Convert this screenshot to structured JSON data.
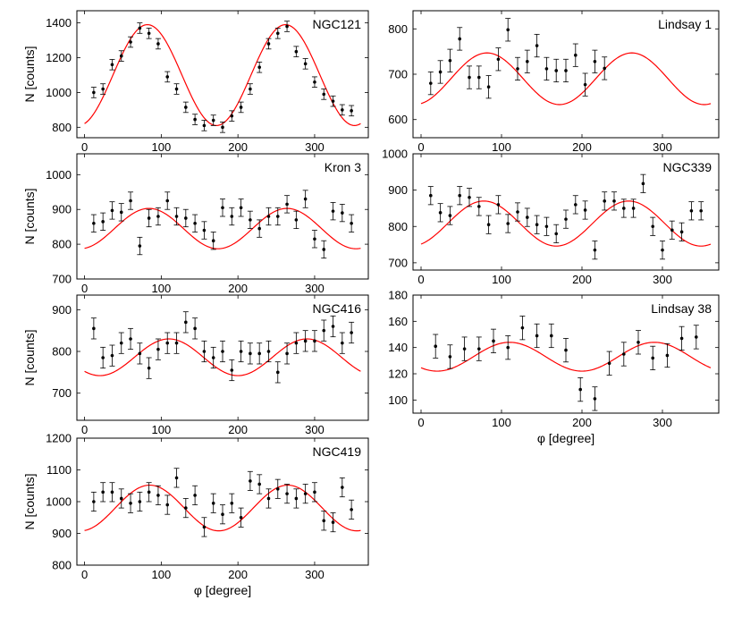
{
  "figure": {
    "xlabel": "φ [degree]",
    "ylabel": "N [counts]"
  },
  "chart_data": [
    {
      "type": "scatter",
      "title": "NGC121",
      "xlabel": "",
      "ylabel": "N [counts]",
      "xlim": [
        -10,
        370
      ],
      "ylim": [
        740,
        1470
      ],
      "xticks": [
        "0",
        "100",
        "200",
        "300"
      ],
      "xtick_values": [
        0,
        100,
        200,
        300
      ],
      "yticks": [
        "800",
        "1000",
        "1200",
        "1400"
      ],
      "ytick_values": [
        800,
        1000,
        1200,
        1400
      ],
      "fit": {
        "mean": 1100,
        "amplitude": 290,
        "period_deg": 180,
        "peak_deg": 82,
        "color": "#ff0000"
      },
      "points": [
        {
          "x": 12,
          "y": 1000,
          "e": 30
        },
        {
          "x": 24,
          "y": 1020,
          "e": 30
        },
        {
          "x": 36,
          "y": 1160,
          "e": 30
        },
        {
          "x": 48,
          "y": 1210,
          "e": 30
        },
        {
          "x": 60,
          "y": 1290,
          "e": 30
        },
        {
          "x": 72,
          "y": 1370,
          "e": 30
        },
        {
          "x": 84,
          "y": 1340,
          "e": 30
        },
        {
          "x": 96,
          "y": 1280,
          "e": 30
        },
        {
          "x": 108,
          "y": 1090,
          "e": 30
        },
        {
          "x": 120,
          "y": 1020,
          "e": 30
        },
        {
          "x": 132,
          "y": 915,
          "e": 30
        },
        {
          "x": 144,
          "y": 845,
          "e": 30
        },
        {
          "x": 156,
          "y": 810,
          "e": 30
        },
        {
          "x": 168,
          "y": 840,
          "e": 30
        },
        {
          "x": 180,
          "y": 800,
          "e": 30
        },
        {
          "x": 192,
          "y": 865,
          "e": 30
        },
        {
          "x": 204,
          "y": 915,
          "e": 30
        },
        {
          "x": 216,
          "y": 1020,
          "e": 30
        },
        {
          "x": 228,
          "y": 1145,
          "e": 30
        },
        {
          "x": 240,
          "y": 1280,
          "e": 30
        },
        {
          "x": 252,
          "y": 1340,
          "e": 30
        },
        {
          "x": 264,
          "y": 1380,
          "e": 30
        },
        {
          "x": 276,
          "y": 1235,
          "e": 30
        },
        {
          "x": 288,
          "y": 1165,
          "e": 30
        },
        {
          "x": 300,
          "y": 1060,
          "e": 30
        },
        {
          "x": 312,
          "y": 990,
          "e": 30
        },
        {
          "x": 324,
          "y": 950,
          "e": 30
        },
        {
          "x": 336,
          "y": 900,
          "e": 30
        },
        {
          "x": 348,
          "y": 895,
          "e": 30
        }
      ]
    },
    {
      "type": "scatter",
      "title": "Lindsay 1",
      "xlabel": "",
      "ylabel": "",
      "xlim": [
        -10,
        370
      ],
      "ylim": [
        560,
        840
      ],
      "xticks": [
        "0",
        "100",
        "200",
        "300"
      ],
      "xtick_values": [
        0,
        100,
        200,
        300
      ],
      "yticks": [
        "600",
        "700",
        "800"
      ],
      "ytick_values": [
        600,
        700,
        800
      ],
      "fit": {
        "mean": 690,
        "amplitude": 57,
        "period_deg": 180,
        "peak_deg": 82,
        "color": "#ff0000"
      },
      "points": [
        {
          "x": 12,
          "y": 680,
          "e": 25
        },
        {
          "x": 24,
          "y": 705,
          "e": 25
        },
        {
          "x": 36,
          "y": 730,
          "e": 25
        },
        {
          "x": 48,
          "y": 778,
          "e": 25
        },
        {
          "x": 60,
          "y": 693,
          "e": 25
        },
        {
          "x": 72,
          "y": 693,
          "e": 25
        },
        {
          "x": 84,
          "y": 672,
          "e": 25
        },
        {
          "x": 96,
          "y": 733,
          "e": 25
        },
        {
          "x": 108,
          "y": 798,
          "e": 25
        },
        {
          "x": 120,
          "y": 712,
          "e": 25
        },
        {
          "x": 132,
          "y": 728,
          "e": 25
        },
        {
          "x": 144,
          "y": 763,
          "e": 25
        },
        {
          "x": 156,
          "y": 712,
          "e": 25
        },
        {
          "x": 168,
          "y": 708,
          "e": 25
        },
        {
          "x": 180,
          "y": 708,
          "e": 25
        },
        {
          "x": 192,
          "y": 742,
          "e": 25
        },
        {
          "x": 204,
          "y": 677,
          "e": 25
        },
        {
          "x": 216,
          "y": 728,
          "e": 25
        },
        {
          "x": 228,
          "y": 713,
          "e": 25
        }
      ]
    },
    {
      "type": "scatter",
      "title": "Kron 3",
      "xlabel": "",
      "ylabel": "N [counts]",
      "xlim": [
        -10,
        370
      ],
      "ylim": [
        700,
        1060
      ],
      "xticks": [
        "0",
        "100",
        "200",
        "300"
      ],
      "xtick_values": [
        0,
        100,
        200,
        300
      ],
      "yticks": [
        "700",
        "800",
        "900",
        "1000"
      ],
      "ytick_values": [
        700,
        800,
        900,
        1000
      ],
      "fit": {
        "mean": 845,
        "amplitude": 58,
        "period_deg": 180,
        "peak_deg": 84,
        "color": "#ff0000"
      },
      "points": [
        {
          "x": 12,
          "y": 860,
          "e": 25
        },
        {
          "x": 24,
          "y": 865,
          "e": 25
        },
        {
          "x": 36,
          "y": 897,
          "e": 25
        },
        {
          "x": 48,
          "y": 892,
          "e": 25
        },
        {
          "x": 60,
          "y": 925,
          "e": 25
        },
        {
          "x": 72,
          "y": 795,
          "e": 25
        },
        {
          "x": 84,
          "y": 875,
          "e": 25
        },
        {
          "x": 96,
          "y": 880,
          "e": 25
        },
        {
          "x": 108,
          "y": 925,
          "e": 25
        },
        {
          "x": 120,
          "y": 880,
          "e": 25
        },
        {
          "x": 132,
          "y": 875,
          "e": 25
        },
        {
          "x": 144,
          "y": 860,
          "e": 25
        },
        {
          "x": 156,
          "y": 840,
          "e": 25
        },
        {
          "x": 168,
          "y": 810,
          "e": 25
        },
        {
          "x": 180,
          "y": 905,
          "e": 25
        },
        {
          "x": 192,
          "y": 880,
          "e": 25
        },
        {
          "x": 204,
          "y": 905,
          "e": 25
        },
        {
          "x": 216,
          "y": 870,
          "e": 25
        },
        {
          "x": 228,
          "y": 845,
          "e": 25
        },
        {
          "x": 240,
          "y": 880,
          "e": 25
        },
        {
          "x": 252,
          "y": 880,
          "e": 25
        },
        {
          "x": 264,
          "y": 915,
          "e": 25
        },
        {
          "x": 276,
          "y": 870,
          "e": 25
        },
        {
          "x": 288,
          "y": 930,
          "e": 25
        },
        {
          "x": 300,
          "y": 815,
          "e": 25
        },
        {
          "x": 312,
          "y": 785,
          "e": 25
        },
        {
          "x": 324,
          "y": 895,
          "e": 25
        },
        {
          "x": 336,
          "y": 890,
          "e": 25
        },
        {
          "x": 348,
          "y": 860,
          "e": 25
        }
      ]
    },
    {
      "type": "scatter",
      "title": "NGC339",
      "xlabel": "",
      "ylabel": "",
      "xlim": [
        -10,
        370
      ],
      "ylim": [
        680,
        1000
      ],
      "xticks": [
        "0",
        "100",
        "200",
        "300"
      ],
      "xtick_values": [
        0,
        100,
        200,
        300
      ],
      "yticks": [
        "700",
        "800",
        "900",
        "1000"
      ],
      "ytick_values": [
        700,
        800,
        900,
        1000
      ],
      "fit": {
        "mean": 808,
        "amplitude": 62,
        "period_deg": 180,
        "peak_deg": 78,
        "color": "#ff0000"
      },
      "points": [
        {
          "x": 12,
          "y": 885,
          "e": 25
        },
        {
          "x": 24,
          "y": 838,
          "e": 25
        },
        {
          "x": 36,
          "y": 830,
          "e": 25
        },
        {
          "x": 48,
          "y": 885,
          "e": 25
        },
        {
          "x": 60,
          "y": 880,
          "e": 25
        },
        {
          "x": 72,
          "y": 855,
          "e": 25
        },
        {
          "x": 84,
          "y": 805,
          "e": 25
        },
        {
          "x": 96,
          "y": 860,
          "e": 25
        },
        {
          "x": 108,
          "y": 808,
          "e": 25
        },
        {
          "x": 120,
          "y": 840,
          "e": 25
        },
        {
          "x": 132,
          "y": 825,
          "e": 25
        },
        {
          "x": 144,
          "y": 805,
          "e": 25
        },
        {
          "x": 156,
          "y": 800,
          "e": 25
        },
        {
          "x": 168,
          "y": 780,
          "e": 25
        },
        {
          "x": 180,
          "y": 820,
          "e": 25
        },
        {
          "x": 192,
          "y": 860,
          "e": 25
        },
        {
          "x": 204,
          "y": 845,
          "e": 25
        },
        {
          "x": 216,
          "y": 735,
          "e": 25
        },
        {
          "x": 228,
          "y": 870,
          "e": 25
        },
        {
          "x": 240,
          "y": 870,
          "e": 25
        },
        {
          "x": 252,
          "y": 850,
          "e": 25
        },
        {
          "x": 264,
          "y": 850,
          "e": 25
        },
        {
          "x": 276,
          "y": 918,
          "e": 25
        },
        {
          "x": 288,
          "y": 800,
          "e": 25
        },
        {
          "x": 300,
          "y": 735,
          "e": 25
        },
        {
          "x": 312,
          "y": 790,
          "e": 25
        },
        {
          "x": 324,
          "y": 785,
          "e": 25
        },
        {
          "x": 336,
          "y": 843,
          "e": 25
        },
        {
          "x": 348,
          "y": 843,
          "e": 25
        }
      ]
    },
    {
      "type": "scatter",
      "title": "NGC416",
      "xlabel": "",
      "ylabel": "N [counts]",
      "xlim": [
        -10,
        370
      ],
      "ylim": [
        635,
        935
      ],
      "xticks": [
        "0",
        "100",
        "200",
        "300"
      ],
      "xtick_values": [
        0,
        100,
        200,
        300
      ],
      "yticks": [
        "700",
        "800",
        "900"
      ],
      "ytick_values": [
        700,
        800,
        900
      ],
      "fit": {
        "mean": 786,
        "amplitude": 44,
        "period_deg": 180,
        "peak_deg": 110,
        "color": "#ff0000"
      },
      "points": [
        {
          "x": 12,
          "y": 855,
          "e": 25
        },
        {
          "x": 24,
          "y": 785,
          "e": 25
        },
        {
          "x": 36,
          "y": 790,
          "e": 25
        },
        {
          "x": 48,
          "y": 820,
          "e": 25
        },
        {
          "x": 60,
          "y": 830,
          "e": 25
        },
        {
          "x": 72,
          "y": 795,
          "e": 25
        },
        {
          "x": 84,
          "y": 760,
          "e": 25
        },
        {
          "x": 96,
          "y": 805,
          "e": 25
        },
        {
          "x": 108,
          "y": 820,
          "e": 25
        },
        {
          "x": 120,
          "y": 820,
          "e": 25
        },
        {
          "x": 132,
          "y": 870,
          "e": 25
        },
        {
          "x": 144,
          "y": 855,
          "e": 25
        },
        {
          "x": 156,
          "y": 800,
          "e": 25
        },
        {
          "x": 168,
          "y": 785,
          "e": 25
        },
        {
          "x": 180,
          "y": 800,
          "e": 25
        },
        {
          "x": 192,
          "y": 755,
          "e": 25
        },
        {
          "x": 204,
          "y": 800,
          "e": 25
        },
        {
          "x": 216,
          "y": 795,
          "e": 25
        },
        {
          "x": 228,
          "y": 795,
          "e": 25
        },
        {
          "x": 240,
          "y": 800,
          "e": 25
        },
        {
          "x": 252,
          "y": 750,
          "e": 25
        },
        {
          "x": 264,
          "y": 795,
          "e": 25
        },
        {
          "x": 276,
          "y": 820,
          "e": 25
        },
        {
          "x": 288,
          "y": 825,
          "e": 25
        },
        {
          "x": 300,
          "y": 825,
          "e": 25
        },
        {
          "x": 312,
          "y": 850,
          "e": 25
        },
        {
          "x": 324,
          "y": 860,
          "e": 25
        },
        {
          "x": 336,
          "y": 820,
          "e": 25
        },
        {
          "x": 348,
          "y": 845,
          "e": 25
        }
      ]
    },
    {
      "type": "scatter",
      "title": "Lindsay 38",
      "xlabel": "φ [degree]",
      "ylabel": "",
      "xlim": [
        -10,
        370
      ],
      "ylim": [
        90,
        180
      ],
      "xticks": [
        "0",
        "100",
        "200",
        "300"
      ],
      "xtick_values": [
        0,
        100,
        200,
        300
      ],
      "yticks": [
        "100",
        "120",
        "140",
        "160",
        "180"
      ],
      "ytick_values": [
        100,
        120,
        140,
        160,
        180
      ],
      "fit": {
        "mean": 133,
        "amplitude": 11,
        "period_deg": 180,
        "peak_deg": 110,
        "color": "#ff0000"
      },
      "points": [
        {
          "x": 18,
          "y": 141,
          "e": 9
        },
        {
          "x": 36,
          "y": 133,
          "e": 9
        },
        {
          "x": 54,
          "y": 139,
          "e": 9
        },
        {
          "x": 72,
          "y": 139,
          "e": 9
        },
        {
          "x": 90,
          "y": 145,
          "e": 9
        },
        {
          "x": 108,
          "y": 140,
          "e": 9
        },
        {
          "x": 126,
          "y": 155,
          "e": 9
        },
        {
          "x": 144,
          "y": 149,
          "e": 9
        },
        {
          "x": 162,
          "y": 149,
          "e": 9
        },
        {
          "x": 180,
          "y": 138,
          "e": 9
        },
        {
          "x": 198,
          "y": 108,
          "e": 9
        },
        {
          "x": 216,
          "y": 101,
          "e": 9
        },
        {
          "x": 234,
          "y": 128,
          "e": 9
        },
        {
          "x": 252,
          "y": 135,
          "e": 9
        },
        {
          "x": 270,
          "y": 144,
          "e": 9
        },
        {
          "x": 288,
          "y": 132,
          "e": 9
        },
        {
          "x": 306,
          "y": 134,
          "e": 9
        },
        {
          "x": 324,
          "y": 147,
          "e": 9
        },
        {
          "x": 342,
          "y": 148,
          "e": 9
        }
      ]
    },
    {
      "type": "scatter",
      "title": "NGC419",
      "xlabel": "φ [degree]",
      "ylabel": "N [counts]",
      "xlim": [
        -10,
        370
      ],
      "ylim": [
        800,
        1200
      ],
      "xticks": [
        "0",
        "100",
        "200",
        "300"
      ],
      "xtick_values": [
        0,
        100,
        200,
        300
      ],
      "yticks": [
        "800",
        "900",
        "1000",
        "1100",
        "1200"
      ],
      "ytick_values": [
        800,
        900,
        1000,
        1100,
        1200
      ],
      "fit": {
        "mean": 980,
        "amplitude": 72,
        "period_deg": 180,
        "peak_deg": 85,
        "color": "#ff0000"
      },
      "points": [
        {
          "x": 12,
          "y": 1000,
          "e": 30
        },
        {
          "x": 24,
          "y": 1030,
          "e": 30
        },
        {
          "x": 36,
          "y": 1030,
          "e": 30
        },
        {
          "x": 48,
          "y": 1010,
          "e": 30
        },
        {
          "x": 60,
          "y": 995,
          "e": 30
        },
        {
          "x": 72,
          "y": 1000,
          "e": 30
        },
        {
          "x": 84,
          "y": 1030,
          "e": 30
        },
        {
          "x": 96,
          "y": 1020,
          "e": 30
        },
        {
          "x": 108,
          "y": 990,
          "e": 30
        },
        {
          "x": 120,
          "y": 1075,
          "e": 30
        },
        {
          "x": 132,
          "y": 980,
          "e": 30
        },
        {
          "x": 144,
          "y": 1020,
          "e": 30
        },
        {
          "x": 156,
          "y": 920,
          "e": 30
        },
        {
          "x": 168,
          "y": 995,
          "e": 30
        },
        {
          "x": 180,
          "y": 960,
          "e": 30
        },
        {
          "x": 192,
          "y": 995,
          "e": 30
        },
        {
          "x": 204,
          "y": 950,
          "e": 30
        },
        {
          "x": 216,
          "y": 1065,
          "e": 30
        },
        {
          "x": 228,
          "y": 1055,
          "e": 30
        },
        {
          "x": 240,
          "y": 1010,
          "e": 30
        },
        {
          "x": 252,
          "y": 1040,
          "e": 30
        },
        {
          "x": 264,
          "y": 1025,
          "e": 30
        },
        {
          "x": 276,
          "y": 1010,
          "e": 30
        },
        {
          "x": 288,
          "y": 1025,
          "e": 30
        },
        {
          "x": 300,
          "y": 1030,
          "e": 30
        },
        {
          "x": 312,
          "y": 940,
          "e": 30
        },
        {
          "x": 324,
          "y": 935,
          "e": 30
        },
        {
          "x": 336,
          "y": 1045,
          "e": 30
        },
        {
          "x": 348,
          "y": 975,
          "e": 30
        }
      ]
    }
  ]
}
